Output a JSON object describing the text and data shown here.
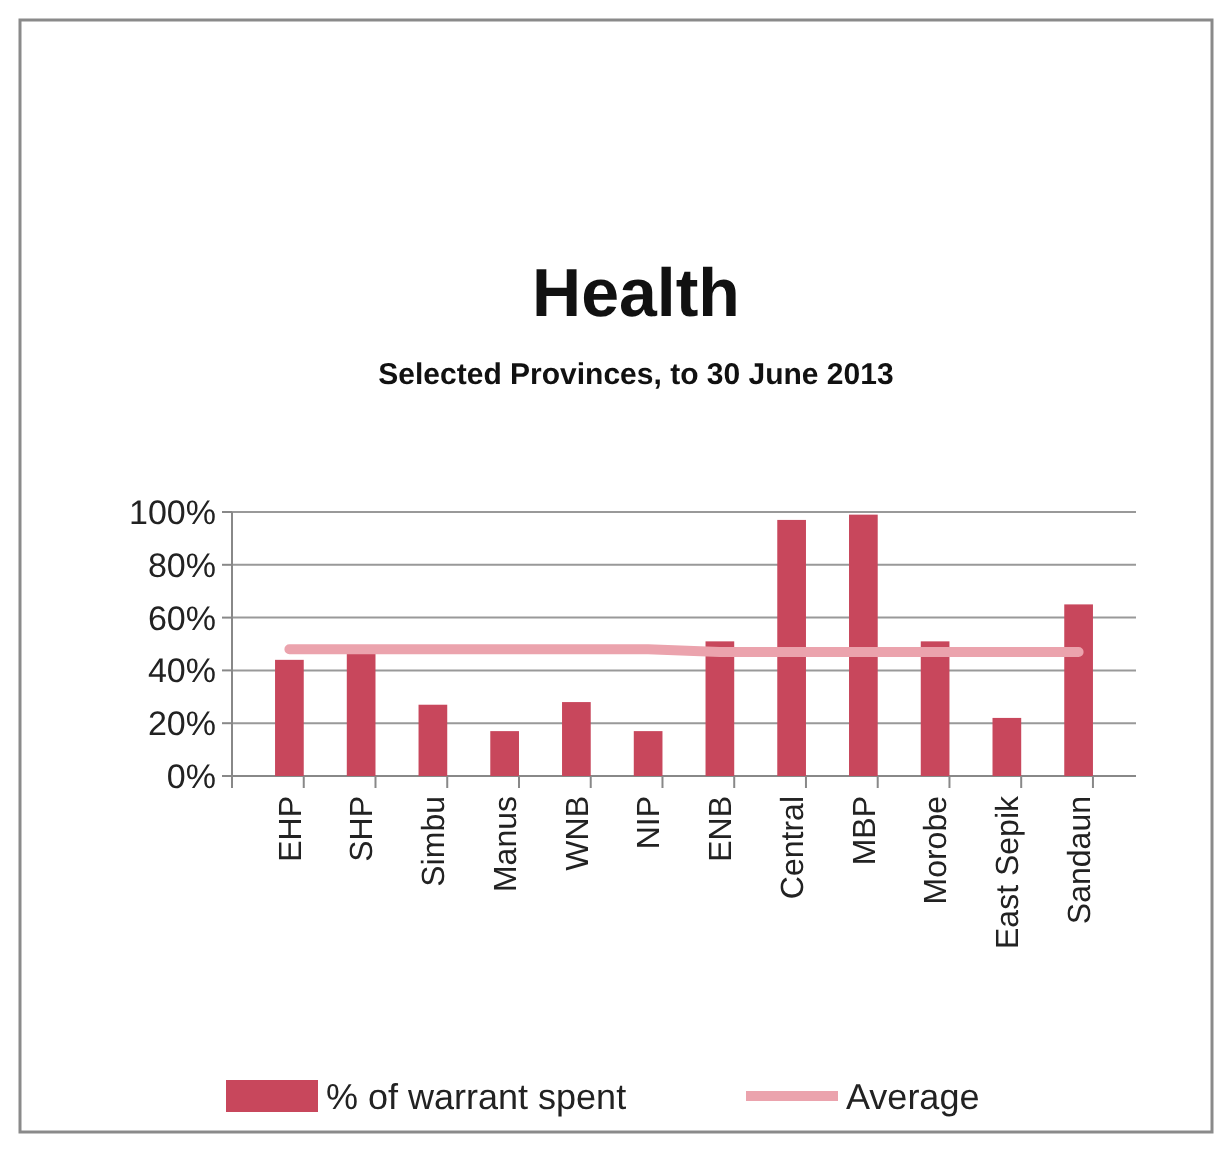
{
  "chart_data": {
    "type": "bar",
    "title": "Health",
    "subtitle": "Selected Provinces, to 30 June 2013",
    "categories": [
      "EHP",
      "SHP",
      "Simbu",
      "Manus",
      "WNB",
      "NIP",
      "ENB",
      "Central",
      "MBP",
      "Morobe",
      "East Sepik",
      "Sandaun"
    ],
    "series": [
      {
        "name": "% of warrant spent",
        "color": "#c8475c",
        "values": [
          44,
          47,
          27,
          17,
          28,
          17,
          51,
          97,
          99,
          51,
          22,
          65
        ]
      },
      {
        "name": "Average",
        "type": "line",
        "color": "#eba3ad",
        "values": [
          48,
          48,
          48,
          48,
          48,
          48,
          47,
          47,
          47,
          47,
          47,
          47
        ]
      }
    ],
    "ylim": [
      0,
      100
    ],
    "yticks": [
      {
        "value": 0,
        "label": "0%"
      },
      {
        "value": 20,
        "label": "20%"
      },
      {
        "value": 40,
        "label": "40%"
      },
      {
        "value": 60,
        "label": "60%"
      },
      {
        "value": 80,
        "label": "80%"
      },
      {
        "value": 100,
        "label": "100%"
      }
    ],
    "grid": "y",
    "legend": "bottom",
    "marker": "none"
  }
}
